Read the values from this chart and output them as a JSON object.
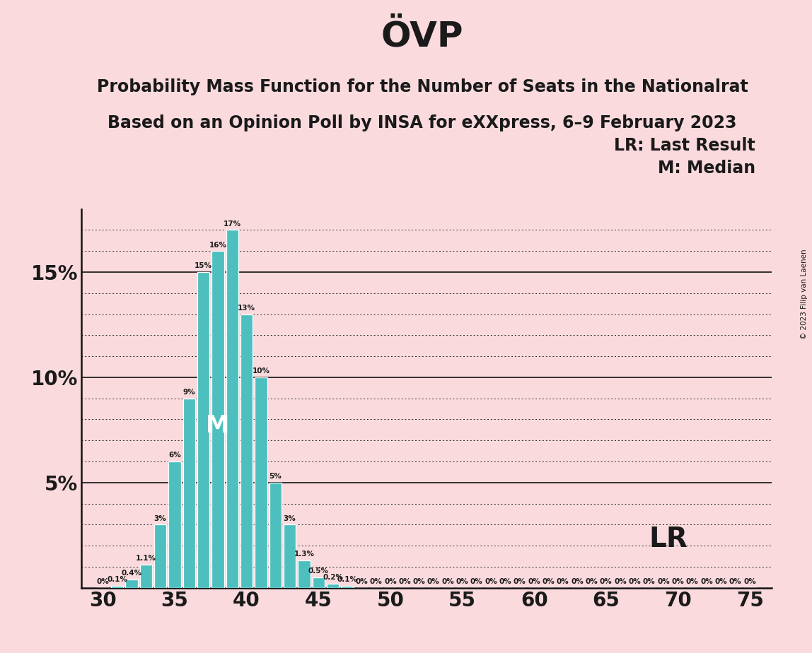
{
  "title": "ÖVP",
  "subtitle1": "Probability Mass Function for the Number of Seats in the Nationalrat",
  "subtitle2": "Based on an Opinion Poll by INSA for eXXpress, 6–9 February 2023",
  "copyright": "© 2023 Filip van Laenen",
  "legend_lr": "LR: Last Result",
  "legend_m": "M: Median",
  "background_color": "#FADADD",
  "bar_color": "#4DBFBF",
  "bar_edge_color": "#FFFFFF",
  "seats": [
    30,
    31,
    32,
    33,
    34,
    35,
    36,
    37,
    38,
    39,
    40,
    41,
    42,
    43,
    44,
    45,
    46,
    47,
    48,
    49,
    50,
    51,
    52,
    53,
    54,
    55,
    56,
    57,
    58,
    59,
    60,
    61,
    62,
    63,
    64,
    65,
    66,
    67,
    68,
    69,
    70,
    71,
    72,
    73,
    74,
    75
  ],
  "probabilities": [
    0.0,
    0.1,
    0.4,
    1.1,
    3.0,
    6.0,
    9.0,
    15.0,
    16.0,
    17.0,
    13.0,
    10.0,
    5.0,
    3.0,
    1.3,
    0.5,
    0.2,
    0.1,
    0.0,
    0.0,
    0.0,
    0.0,
    0.0,
    0.0,
    0.0,
    0.0,
    0.0,
    0.0,
    0.0,
    0.0,
    0.0,
    0.0,
    0.0,
    0.0,
    0.0,
    0.0,
    0.0,
    0.0,
    0.0,
    0.0,
    0.0,
    0.0,
    0.0,
    0.0,
    0.0,
    0.0
  ],
  "labels": [
    "0%",
    "0.1%",
    "0.4%",
    "1.1%",
    "3%",
    "6%",
    "9%",
    "15%",
    "16%",
    "17%",
    "13%",
    "10%",
    "5%",
    "3%",
    "1.3%",
    "0.5%",
    "0.2%",
    "0.1%",
    "0%",
    "0%",
    "0%",
    "0%",
    "0%",
    "0%",
    "0%",
    "0%",
    "0%",
    "0%",
    "0%",
    "0%",
    "0%",
    "0%",
    "0%",
    "0%",
    "0%",
    "0%",
    "0%",
    "0%",
    "0%",
    "0%",
    "0%",
    "0%",
    "0%",
    "0%",
    "0%",
    "0%"
  ],
  "median_seat": 38,
  "lr_seat": 71,
  "ylim_max": 18.0,
  "ytick_positions": [
    5,
    10,
    15
  ],
  "ytick_labels": [
    "5%",
    "10%",
    "15%"
  ],
  "xlim_min": 28.5,
  "xlim_max": 76.5,
  "xtick_positions": [
    30,
    35,
    40,
    45,
    50,
    55,
    60,
    65,
    70,
    75
  ],
  "grid_color": "#222222",
  "axis_color": "#111111",
  "title_fontsize": 36,
  "subtitle_fontsize": 17,
  "label_fontsize": 7.5,
  "axis_tick_fontsize": 20,
  "legend_fontsize": 17,
  "median_label_fontsize": 24,
  "lr_label_fontsize": 28
}
